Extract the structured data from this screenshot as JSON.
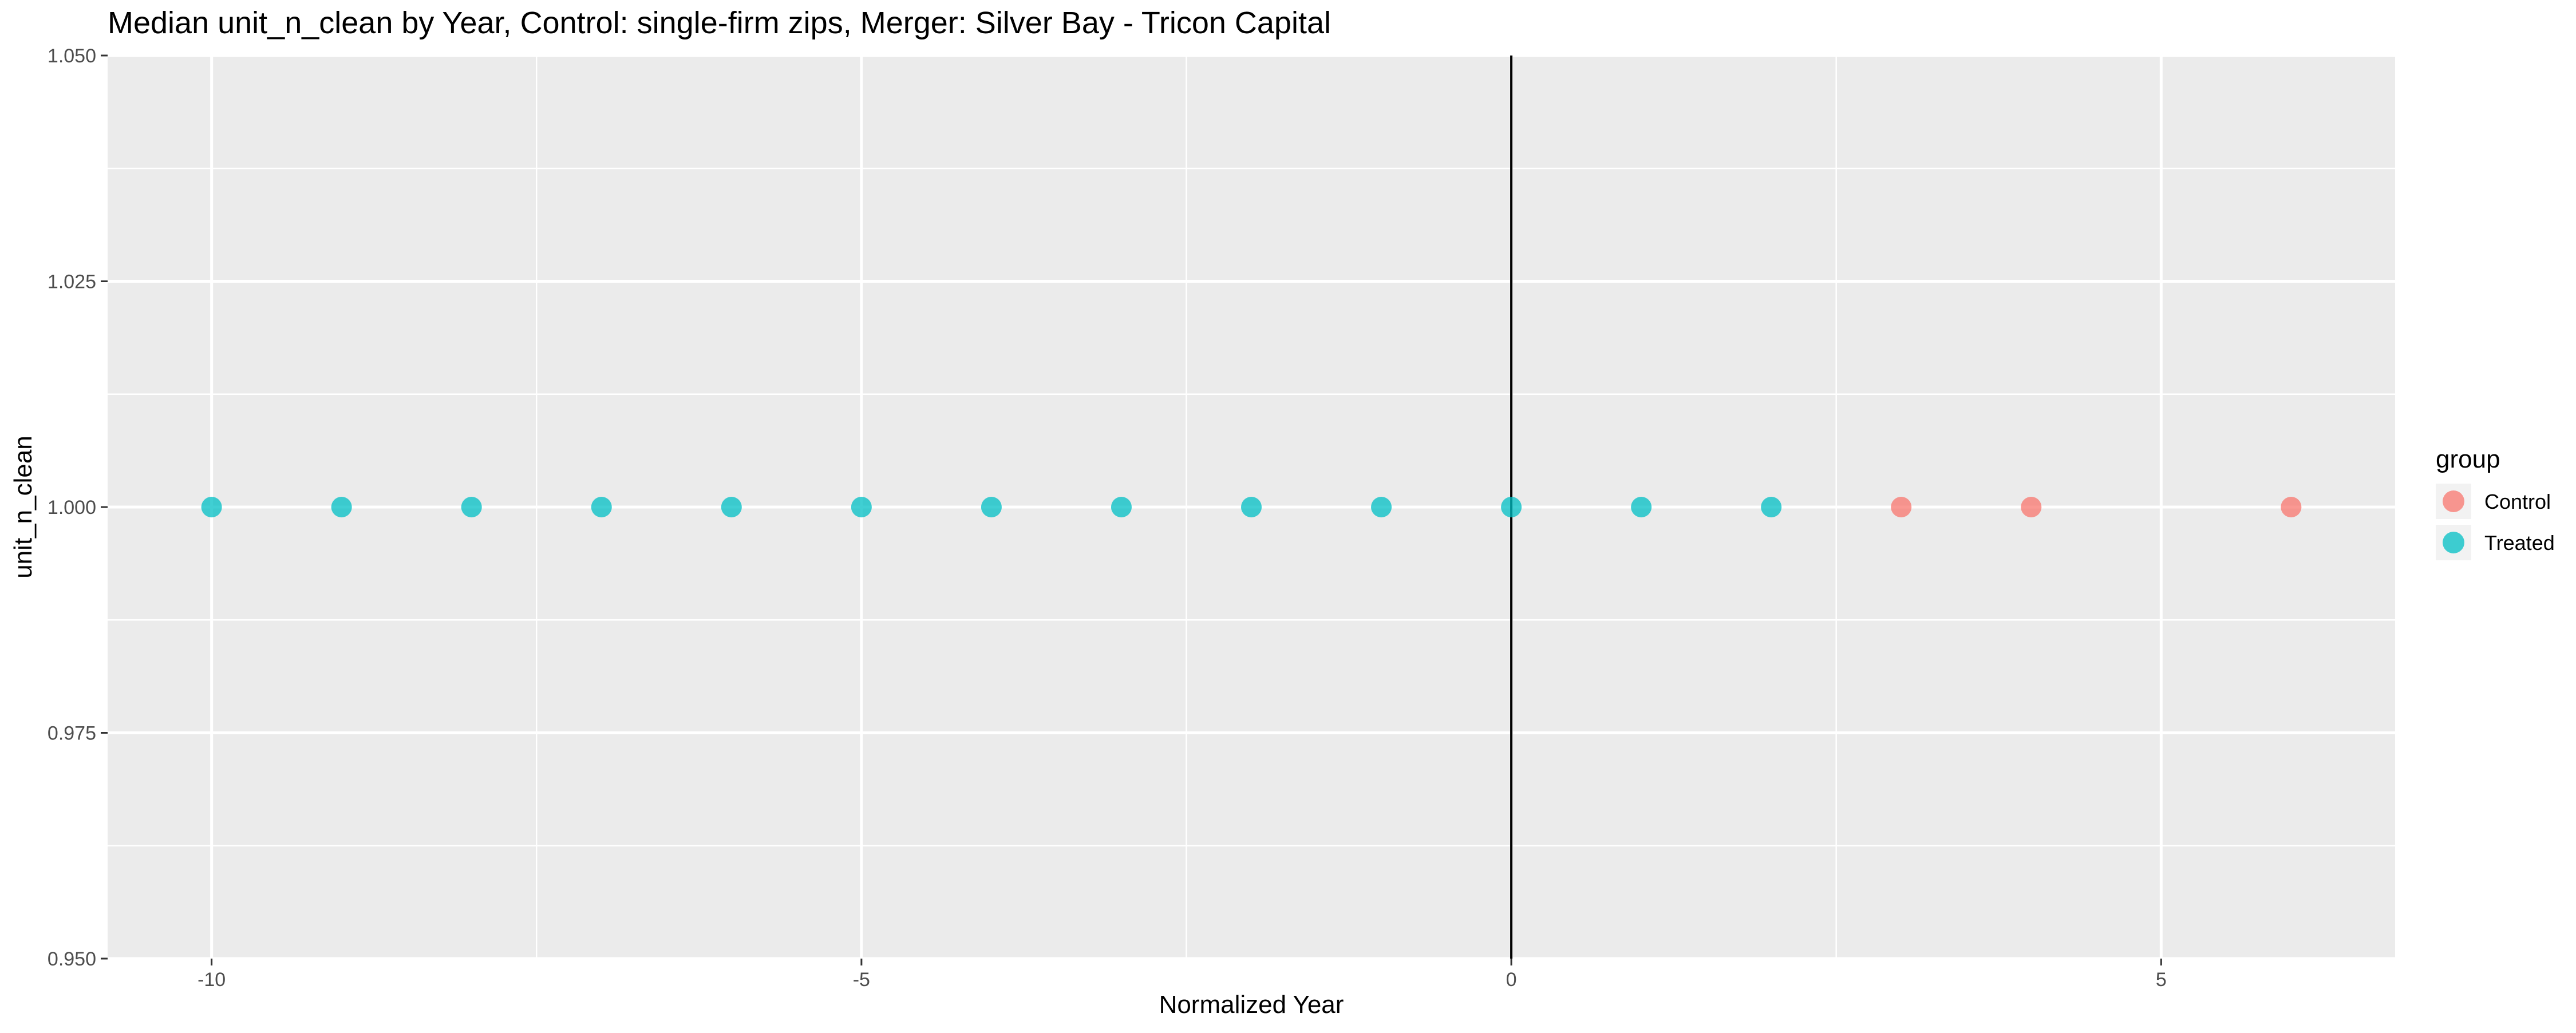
{
  "chart_data": {
    "type": "scatter",
    "title": "Median unit_n_clean by Year, Control: single-firm zips, Merger: Silver Bay - Tricon Capital",
    "xlabel": "Normalized Year",
    "ylabel": "unit_n_clean",
    "xlim": [
      -10.8,
      6.8
    ],
    "ylim": [
      0.95,
      1.05
    ],
    "x_ticks": [
      -10,
      -5,
      0,
      5
    ],
    "x_tick_labels": [
      "-10",
      "-5",
      "0",
      "5"
    ],
    "y_ticks": [
      0.95,
      0.975,
      1.0,
      1.025,
      1.05
    ],
    "y_tick_labels": [
      "0.950",
      "0.975",
      "1.000",
      "1.025",
      "1.050"
    ],
    "vline_x": 0,
    "grid": true,
    "legend": {
      "title": "group",
      "position": "right"
    },
    "series": [
      {
        "name": "Control",
        "color": "#F8766D",
        "points": [
          {
            "x": 3,
            "y": 1.0
          },
          {
            "x": 4,
            "y": 1.0
          },
          {
            "x": 6,
            "y": 1.0
          }
        ]
      },
      {
        "name": "Treated",
        "color": "#00BFC4",
        "points": [
          {
            "x": -10,
            "y": 1.0
          },
          {
            "x": -9,
            "y": 1.0
          },
          {
            "x": -8,
            "y": 1.0
          },
          {
            "x": -7,
            "y": 1.0
          },
          {
            "x": -6,
            "y": 1.0
          },
          {
            "x": -5,
            "y": 1.0
          },
          {
            "x": -4,
            "y": 1.0
          },
          {
            "x": -3,
            "y": 1.0
          },
          {
            "x": -2,
            "y": 1.0
          },
          {
            "x": -1,
            "y": 1.0
          },
          {
            "x": 0,
            "y": 1.0
          },
          {
            "x": 1,
            "y": 1.0
          },
          {
            "x": 2,
            "y": 1.0
          }
        ]
      }
    ]
  }
}
